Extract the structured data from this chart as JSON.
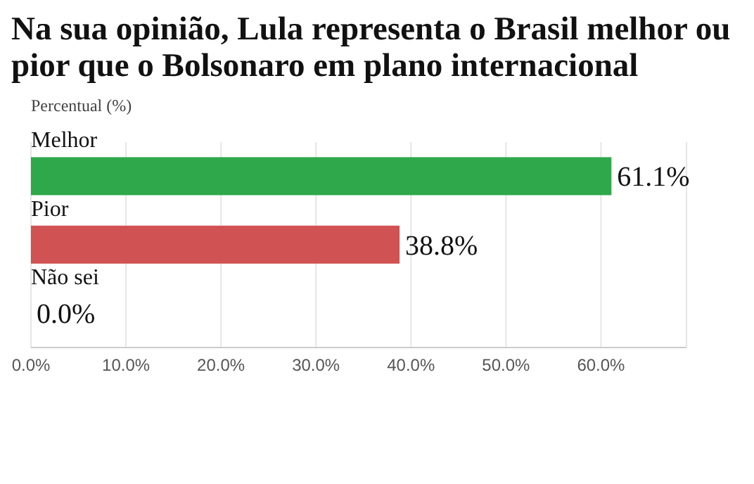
{
  "chart_data": {
    "type": "bar",
    "orientation": "horizontal",
    "title": "Na sua opinião, Lula representa o Brasil melhor ou pior que o Bolsonaro em plano internacional",
    "xlabel": "Percentual (%)",
    "categories": [
      "Melhor",
      "Pior",
      "Não sei"
    ],
    "values": [
      61.1,
      38.8,
      0.0
    ],
    "colors": [
      "#2ea84a",
      "#d05252",
      "#888888"
    ],
    "value_labels": [
      "61.1%",
      "38.8%",
      "0.0%"
    ],
    "xlim": [
      0,
      69
    ],
    "xticks": [
      {
        "value": 0,
        "label": "0.0%"
      },
      {
        "value": 10,
        "label": "10.0%"
      },
      {
        "value": 20,
        "label": "20.0%"
      },
      {
        "value": 30,
        "label": "30.0%"
      },
      {
        "value": 40,
        "label": "40.0%"
      },
      {
        "value": 50,
        "label": "50.0%"
      },
      {
        "value": 60,
        "label": "60.0%"
      }
    ],
    "grid": "x",
    "legend": false
  }
}
